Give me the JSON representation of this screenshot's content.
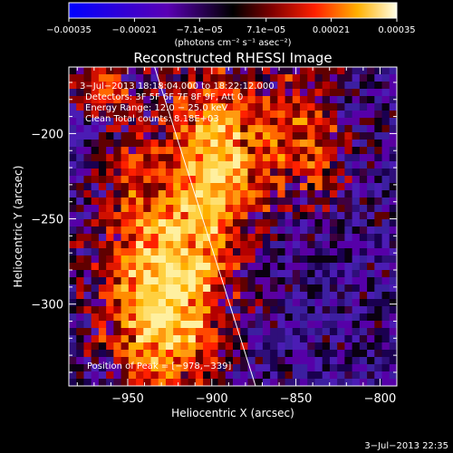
{
  "chart_data": {
    "type": "heatmap",
    "title": "Reconstructed RHESSI Image",
    "xlabel": "Heliocentric X (arcsec)",
    "ylabel": "Heliocentric Y (arcsec)",
    "xlim": [
      -985,
      -790
    ],
    "ylim": [
      -348,
      -161
    ],
    "x_ticks": [
      -950,
      -900,
      -850,
      -800
    ],
    "x_tick_labels": [
      "−950",
      "−900",
      "−850",
      "−800"
    ],
    "y_ticks": [
      -200,
      -250,
      -300
    ],
    "y_tick_labels": [
      "−200",
      "−250",
      "−300"
    ],
    "colorbar": {
      "min": -0.00035,
      "max": 0.00035,
      "ticks": [
        -0.00035,
        -0.00021,
        -7.1e-05,
        7.1e-05,
        0.00021,
        0.00035
      ],
      "tick_labels": [
        "−0.00035",
        "−0.00021",
        "−7.1e−05",
        "7.1e−05",
        "0.00021",
        "0.00035"
      ],
      "units_label": "(photons cm⁻² s⁻¹ asec⁻²)"
    },
    "annotations": {
      "line1": "3−Jul−2013 18:18:04.000 to 18:22:12.000",
      "line2": "Detectors: 3F 5F 6F 7F 8F 9F, Att 0",
      "line3": "Energy Range: 12.0 − 25.0 keV",
      "line4": "Clean    Total counts: 8.18E+03",
      "position": "Position of Peak = [−978,−339]"
    },
    "limb_line": {
      "x": [
        -934,
        -874
      ],
      "y": [
        -161,
        -348
      ]
    },
    "grid": false
  },
  "footer": {
    "timestamp": "3−Jul−2013 22:35"
  }
}
